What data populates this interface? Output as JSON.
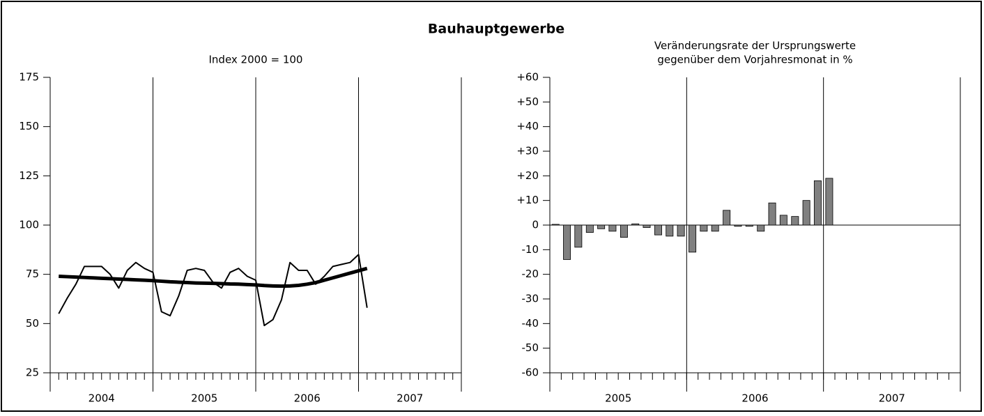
{
  "title": "Bauhauptgewerbe",
  "chart_data": [
    {
      "type": "line",
      "title": "Index 2000 = 100",
      "x": [
        2004.083,
        2004.167,
        2004.25,
        2004.333,
        2004.417,
        2004.5,
        2004.583,
        2004.667,
        2004.75,
        2004.833,
        2004.917,
        2005,
        2005.083,
        2005.167,
        2005.25,
        2005.333,
        2005.417,
        2005.5,
        2005.583,
        2005.667,
        2005.75,
        2005.833,
        2005.917,
        2006,
        2006.083,
        2006.167,
        2006.25,
        2006.333,
        2006.417,
        2006.5,
        2006.583,
        2006.667,
        2006.75,
        2006.833,
        2006.917,
        2007,
        2007.083
      ],
      "series": [
        {
          "color": "#000000",
          "line_width": 2,
          "values": [
            55,
            63,
            70,
            79,
            79,
            79,
            75,
            68,
            77,
            81,
            78,
            76,
            56,
            54,
            64,
            77,
            78,
            77,
            71,
            68,
            76,
            78,
            74,
            72,
            49,
            52,
            62,
            81,
            77,
            77,
            70,
            74,
            79,
            80,
            81,
            85,
            58
          ]
        },
        {
          "color": "#000000",
          "line_width": 5,
          "values": [
            74,
            73.8,
            73.6,
            73.4,
            73.2,
            73,
            72.8,
            72.6,
            72.4,
            72.2,
            72,
            71.8,
            71.5,
            71.2,
            71,
            70.8,
            70.6,
            70.5,
            70.4,
            70.3,
            70.1,
            70,
            69.8,
            69.6,
            69.3,
            69.1,
            69,
            69.1,
            69.4,
            70,
            70.8,
            72,
            73.2,
            74.4,
            75.6,
            76.8,
            78
          ]
        }
      ],
      "xlim": [
        2004,
        2008
      ],
      "xticks": [
        2004,
        2005,
        2006,
        2007,
        2008
      ],
      "x_bands": [
        "2004",
        "2005",
        "2006",
        "2007"
      ],
      "ylim": [
        25,
        175
      ],
      "yticks": [
        25,
        50,
        75,
        100,
        125,
        150,
        175
      ]
    },
    {
      "type": "bar",
      "title": [
        "Veränderungsrate der Ursprungswerte",
        "gegenüber dem Vorjahresmonat in %"
      ],
      "x": [
        2005.042,
        2005.125,
        2005.208,
        2005.292,
        2005.375,
        2005.458,
        2005.542,
        2005.625,
        2005.708,
        2005.792,
        2005.875,
        2005.958,
        2006.042,
        2006.125,
        2006.208,
        2006.292,
        2006.375,
        2006.458,
        2006.542,
        2006.625,
        2006.708,
        2006.792,
        2006.875,
        2006.958,
        2007.042
      ],
      "values": [
        0.3,
        -14,
        -9,
        -3,
        -1.5,
        -2.5,
        -5,
        0.5,
        -1,
        -4,
        -4.5,
        -4.5,
        -11,
        -2.5,
        -2.5,
        6,
        -0.5,
        -0.5,
        -2.5,
        9,
        4,
        3.5,
        10,
        18,
        19
      ],
      "color": "#808080",
      "xlim": [
        2005,
        2008
      ],
      "xticks": [
        2005,
        2006,
        2007,
        2008
      ],
      "x_bands": [
        "2005",
        "2006",
        "2007"
      ],
      "ylim": [
        -60,
        60
      ],
      "yticks": [
        -60,
        -50,
        -40,
        -30,
        -20,
        -10,
        0,
        {
          "value": 10,
          "label": "+10"
        },
        {
          "value": 20,
          "label": "+20"
        },
        {
          "value": 30,
          "label": "+30"
        },
        {
          "value": 40,
          "label": "+40"
        },
        {
          "value": 50,
          "label": "+50"
        },
        {
          "value": 60,
          "label": "+60"
        }
      ],
      "zero_line": true
    }
  ]
}
